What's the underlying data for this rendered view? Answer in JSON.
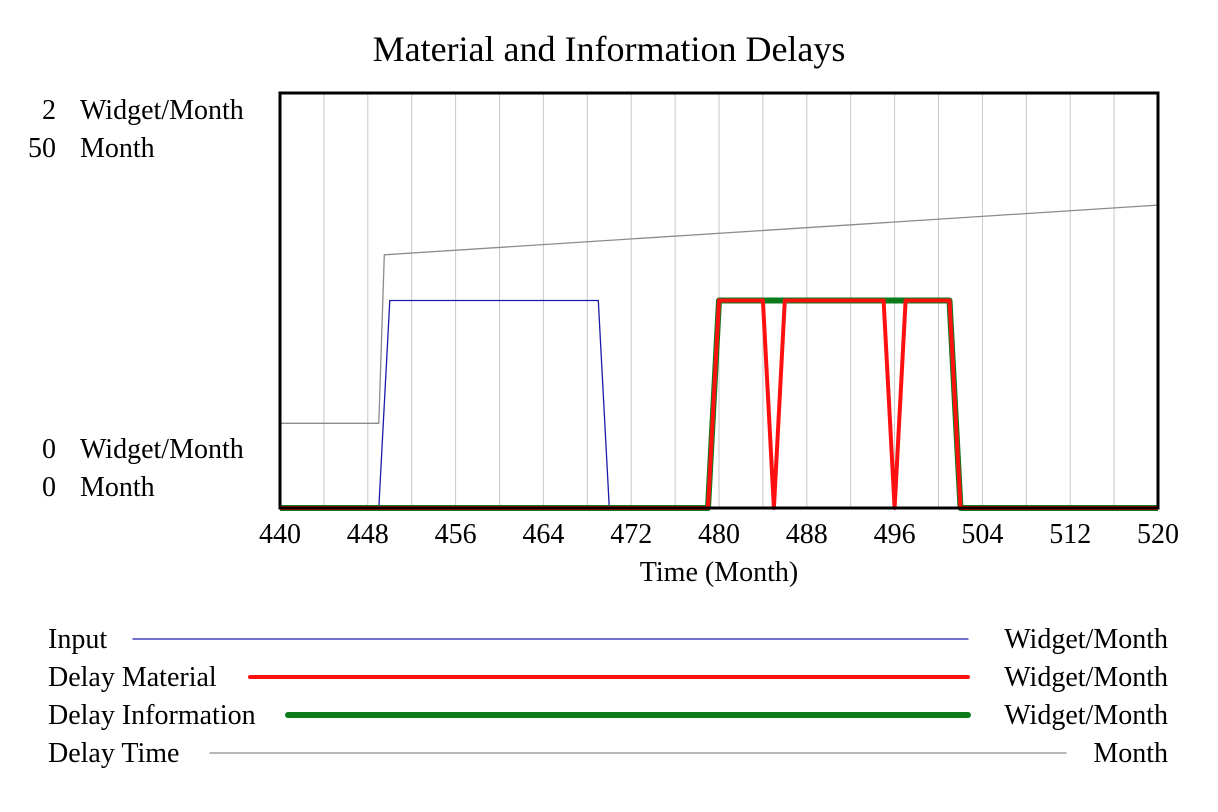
{
  "chart_data": {
    "type": "line",
    "title": "Material and Information Delays",
    "xlabel": "Time (Month)",
    "xlim": [
      440,
      520
    ],
    "x_ticks": [
      "440",
      "448",
      "456",
      "464",
      "472",
      "480",
      "488",
      "496",
      "504",
      "512",
      "520"
    ],
    "grid": true,
    "y_axes": [
      {
        "unit": "Widget/Month",
        "top": "2",
        "bottom": "0",
        "ylim": [
          0,
          2
        ]
      },
      {
        "unit": "Month",
        "top": "50",
        "bottom": "0",
        "ylim": [
          0,
          50
        ]
      }
    ],
    "legend_placement": "bottom",
    "series": [
      {
        "name": "Input",
        "unit": "Widget/Month",
        "axis": 0,
        "color": "#1a1aa8",
        "style": "thin",
        "points": [
          [
            440,
            0
          ],
          [
            449,
            0
          ],
          [
            450,
            1
          ],
          [
            469,
            1
          ],
          [
            470,
            0
          ],
          [
            520,
            0
          ]
        ]
      },
      {
        "name": "Delay Material",
        "unit": "Widget/Month",
        "axis": 0,
        "color": "#ff1010",
        "style": "thick",
        "points": [
          [
            440,
            0
          ],
          [
            479,
            0
          ],
          [
            480,
            1
          ],
          [
            484,
            1
          ],
          [
            485,
            0
          ],
          [
            486,
            1
          ],
          [
            495,
            1
          ],
          [
            496,
            0
          ],
          [
            497,
            1
          ],
          [
            501,
            1
          ],
          [
            502,
            0
          ],
          [
            520,
            0
          ]
        ]
      },
      {
        "name": "Delay Information",
        "unit": "Widget/Month",
        "axis": 0,
        "color": "#0a7a1a",
        "style": "thicker",
        "points": [
          [
            440,
            0
          ],
          [
            479,
            0
          ],
          [
            480,
            1
          ],
          [
            501,
            1
          ],
          [
            502,
            0
          ],
          [
            520,
            0
          ]
        ]
      },
      {
        "name": "Delay Time",
        "unit": "Month",
        "axis": 1,
        "color": "#8c8c8c",
        "style": "thin",
        "points": [
          [
            440,
            10.2
          ],
          [
            449,
            10.2
          ],
          [
            449.5,
            30.5
          ],
          [
            520,
            36.5
          ]
        ]
      }
    ]
  }
}
